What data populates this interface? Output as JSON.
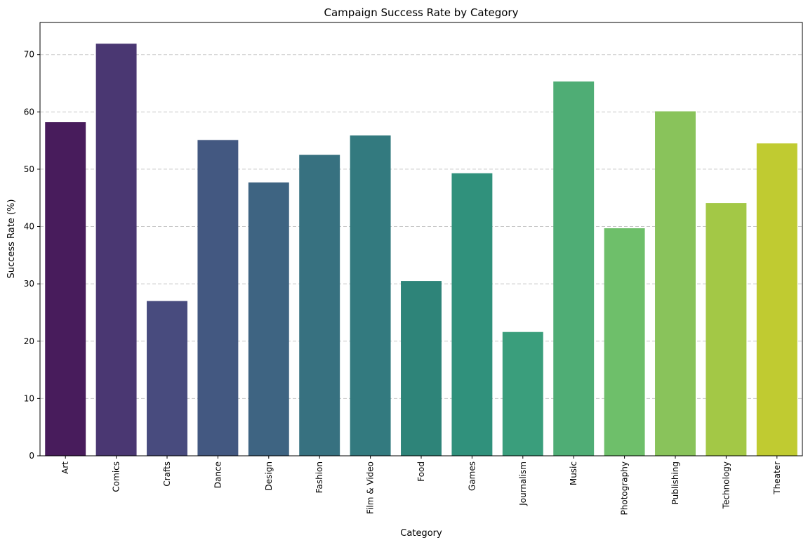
{
  "chart_data": {
    "type": "bar",
    "title": "Campaign Success Rate by Category",
    "xlabel": "Category",
    "ylabel": "Success Rate (%)",
    "categories": [
      "Art",
      "Comics",
      "Crafts",
      "Dance",
      "Design",
      "Fashion",
      "Film & Video",
      "Food",
      "Games",
      "Journalism",
      "Music",
      "Photography",
      "Publishing",
      "Technology",
      "Theater"
    ],
    "values": [
      58.2,
      71.9,
      27.0,
      55.1,
      47.7,
      52.5,
      55.9,
      30.5,
      49.3,
      21.6,
      65.3,
      39.7,
      60.1,
      44.1,
      54.5
    ],
    "colors": [
      "#481c5c",
      "#4a3772",
      "#484b7e",
      "#435881",
      "#3e6482",
      "#377180",
      "#337a7f",
      "#2e8479",
      "#30917c",
      "#3a9e7c",
      "#4fad75",
      "#6ebf6a",
      "#89c35b",
      "#a3c846",
      "#c0cb31"
    ],
    "ylim": [
      0,
      75.6
    ],
    "yticks": [
      0,
      10,
      20,
      30,
      40,
      50,
      60,
      70
    ],
    "grid": "y-dashed",
    "legend": "none"
  }
}
